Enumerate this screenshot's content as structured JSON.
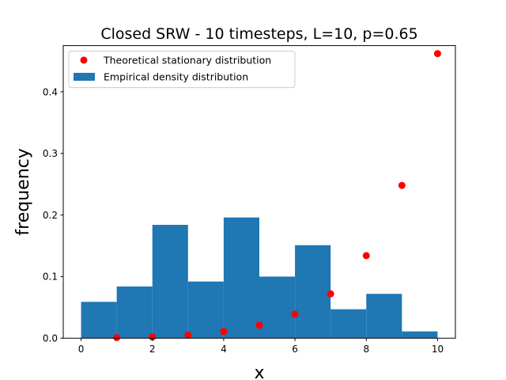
{
  "chart_data": {
    "type": "bar",
    "title": "Closed SRW - 10 timesteps, L=10, p=0.65",
    "xlabel": "x",
    "ylabel": "frequency",
    "xlim": [
      -0.5,
      10.5
    ],
    "ylim": [
      0,
      0.475
    ],
    "x_ticks": [
      0,
      2,
      4,
      6,
      8,
      10
    ],
    "y_ticks": [
      0.0,
      0.1,
      0.2,
      0.3,
      0.4
    ],
    "x_tick_labels": [
      "0",
      "2",
      "4",
      "6",
      "8",
      "10"
    ],
    "y_tick_labels": [
      "0.0",
      "0.1",
      "0.2",
      "0.3",
      "0.4"
    ],
    "grid": false,
    "legend_position": "upper-left",
    "series": [
      {
        "name": "Theoretical stationary distribution",
        "type": "scatter",
        "color": "#ff0000",
        "x": [
          1,
          2,
          3,
          4,
          5,
          6,
          7,
          8,
          9,
          10
        ],
        "y": [
          0.001,
          0.002,
          0.005,
          0.011,
          0.021,
          0.039,
          0.072,
          0.134,
          0.248,
          0.462
        ]
      },
      {
        "name": "Empirical density distribution",
        "type": "histogram",
        "color": "#1f77b4",
        "bin_edges": [
          0,
          1,
          2,
          3,
          4,
          5,
          6,
          7,
          8,
          9,
          10
        ],
        "values": [
          0.059,
          0.084,
          0.184,
          0.092,
          0.196,
          0.1,
          0.151,
          0.047,
          0.072,
          0.011
        ]
      }
    ]
  }
}
